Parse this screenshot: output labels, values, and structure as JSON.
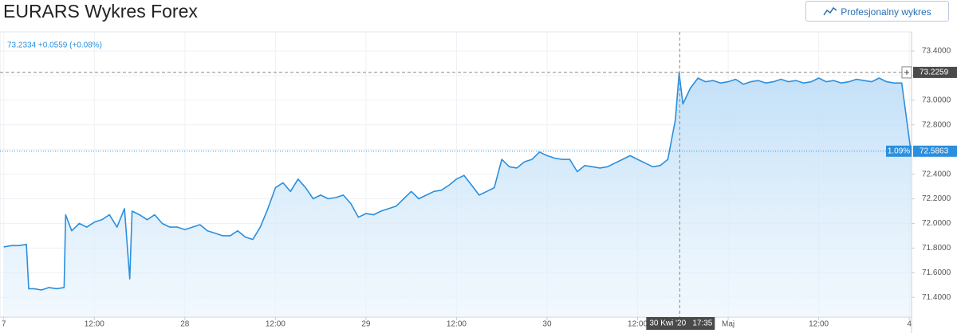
{
  "header": {
    "title": "EURARS Wykres Forex",
    "button": "Profesjonalny wykres"
  },
  "chart_data": {
    "type": "area",
    "legend": "73.2334 +0.0559 (+0.08%)",
    "color": "#2b8fdd",
    "grid": true,
    "xlim": [
      -0.5,
      120.3
    ],
    "ylim": [
      71.24,
      73.555
    ],
    "xticks": [
      {
        "value": 0,
        "label": "7"
      },
      {
        "value": 12,
        "label": "12:00"
      },
      {
        "value": 24,
        "label": "28"
      },
      {
        "value": 36,
        "label": "12:00"
      },
      {
        "value": 48,
        "label": "29"
      },
      {
        "value": 60,
        "label": "12:00"
      },
      {
        "value": 72,
        "label": "30"
      },
      {
        "value": 84,
        "label": "12:00"
      },
      {
        "value": 96,
        "label": "Maj"
      },
      {
        "value": 108,
        "label": "12:00"
      },
      {
        "value": 120,
        "label": "4"
      }
    ],
    "yticks": [
      {
        "value": 71.4,
        "label": "71.4000"
      },
      {
        "value": 71.6,
        "label": "71.6000"
      },
      {
        "value": 71.8,
        "label": "71.8000"
      },
      {
        "value": 72.0,
        "label": "72.0000"
      },
      {
        "value": 72.2,
        "label": "72.2000"
      },
      {
        "value": 72.4,
        "label": "72.4000"
      },
      {
        "value": 72.6,
        "label": "72.6000"
      },
      {
        "value": 72.8,
        "label": "72.8000"
      },
      {
        "value": 73.0,
        "label": "73.0000"
      },
      {
        "value": 73.2,
        "label": "73.2000"
      },
      {
        "value": 73.4,
        "label": "73.4000"
      }
    ],
    "x": [
      0,
      1,
      2,
      3,
      3.3,
      4,
      5,
      6,
      7,
      8,
      8.2,
      9,
      10,
      11,
      12,
      13,
      14,
      15,
      16,
      16.7,
      17,
      18,
      19,
      20,
      21,
      22,
      23,
      24,
      25,
      26,
      27,
      28,
      29,
      30,
      31,
      32,
      33,
      34,
      35,
      36,
      37,
      38,
      39,
      40,
      41,
      42,
      43,
      44,
      45,
      46,
      47,
      48,
      49,
      50,
      51,
      52,
      53,
      54,
      55,
      56,
      57,
      58,
      59,
      60,
      61,
      62,
      63,
      64,
      65,
      66,
      67,
      68,
      69,
      70,
      71,
      72,
      73,
      74,
      75,
      76,
      77,
      78,
      79,
      80,
      81,
      82,
      83,
      84,
      85,
      86,
      87,
      88,
      89,
      89.5,
      90,
      91,
      92,
      93,
      94,
      95,
      96,
      97,
      98,
      99,
      100,
      101,
      102,
      103,
      104,
      105,
      106,
      107,
      108,
      109,
      110,
      111,
      112,
      113,
      114,
      115,
      116,
      117,
      118,
      119,
      120.2
    ],
    "values": [
      71.81,
      71.82,
      71.82,
      71.83,
      71.47,
      71.47,
      71.46,
      71.48,
      71.47,
      71.48,
      72.07,
      71.94,
      72.0,
      71.97,
      72.01,
      72.03,
      72.07,
      71.97,
      72.12,
      71.55,
      72.1,
      72.07,
      72.03,
      72.07,
      72.0,
      71.97,
      71.97,
      71.95,
      71.97,
      71.99,
      71.94,
      71.92,
      71.9,
      71.9,
      71.94,
      71.89,
      71.87,
      71.97,
      72.12,
      72.29,
      72.33,
      72.26,
      72.36,
      72.29,
      72.2,
      72.23,
      72.2,
      72.21,
      72.23,
      72.16,
      72.05,
      72.08,
      72.07,
      72.1,
      72.12,
      72.14,
      72.2,
      72.26,
      72.2,
      72.23,
      72.26,
      72.27,
      72.31,
      72.36,
      72.39,
      72.31,
      72.23,
      72.26,
      72.29,
      72.52,
      72.46,
      72.45,
      72.5,
      72.52,
      72.58,
      72.55,
      72.53,
      72.52,
      72.52,
      72.42,
      72.47,
      72.46,
      72.45,
      72.46,
      72.49,
      72.52,
      72.55,
      72.52,
      72.49,
      72.46,
      72.47,
      72.52,
      72.84,
      73.22,
      72.97,
      73.1,
      73.18,
      73.15,
      73.16,
      73.14,
      73.15,
      73.17,
      73.13,
      73.15,
      73.16,
      73.14,
      73.15,
      73.17,
      73.15,
      73.16,
      73.14,
      73.15,
      73.18,
      73.15,
      73.16,
      73.14,
      73.15,
      73.17,
      73.16,
      73.15,
      73.18,
      73.15,
      73.14,
      73.14,
      72.59
    ],
    "crosshair": {
      "x": 89.58,
      "price": 73.2259,
      "date_label": "30 Kwi '20",
      "time_label": "17:35"
    },
    "last_price": 72.5863,
    "last_change": "1.09%"
  }
}
